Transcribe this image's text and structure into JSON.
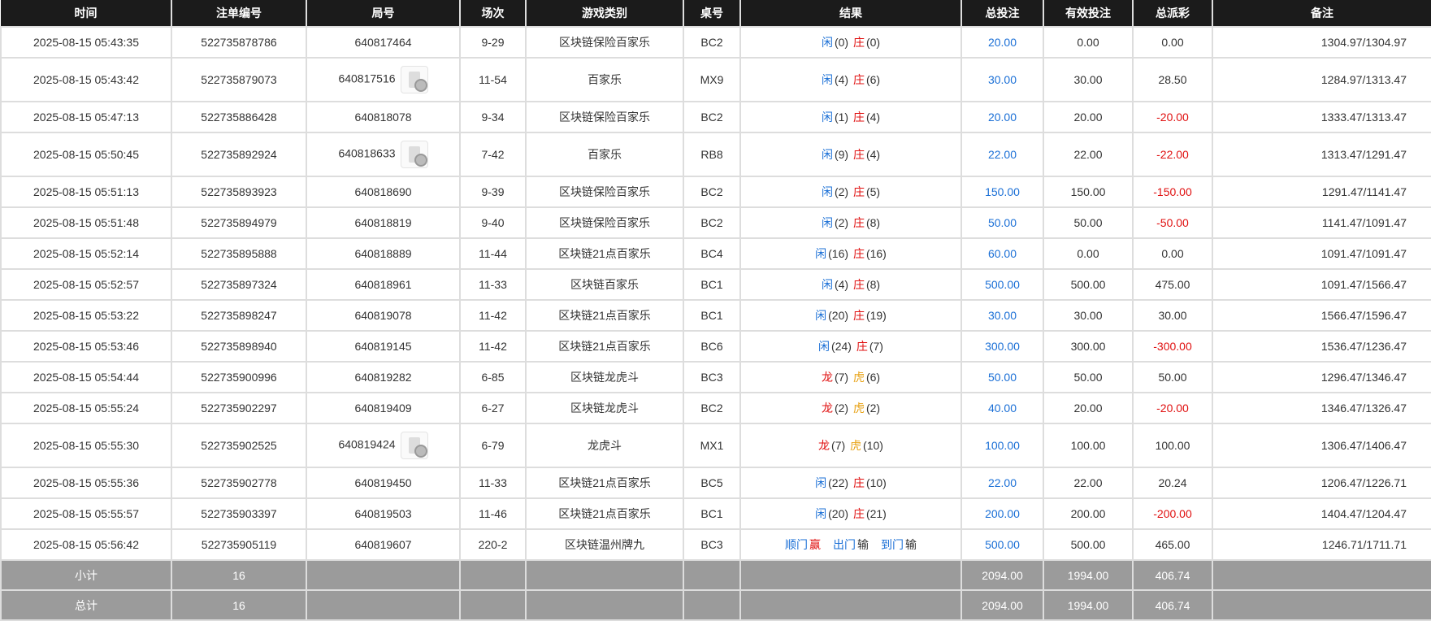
{
  "headers": [
    "时间",
    "注单编号",
    "局号",
    "场次",
    "游戏类别",
    "桌号",
    "结果",
    "总投注",
    "有效投注",
    "总派彩",
    "备注"
  ],
  "rows": [
    {
      "time": "2025-08-15 05:43:35",
      "bet_id": "522735878786",
      "round": "640817464",
      "video": false,
      "session": "9-29",
      "game": "区块链保险百家乐",
      "table": "BC2",
      "result": [
        [
          "闲",
          "blue"
        ],
        [
          "(0) ",
          "dark"
        ],
        [
          "庄",
          "red"
        ],
        [
          "(0)",
          "dark"
        ]
      ],
      "total": "20.00",
      "valid": "0.00",
      "payout": "0.00",
      "payout_neg": false,
      "remark": "1304.97/1304.97"
    },
    {
      "time": "2025-08-15 05:43:42",
      "bet_id": "522735879073",
      "round": "640817516",
      "video": true,
      "session": "11-54",
      "game": "百家乐",
      "table": "MX9",
      "result": [
        [
          "闲",
          "blue"
        ],
        [
          "(4) ",
          "dark"
        ],
        [
          "庄",
          "red"
        ],
        [
          "(6)",
          "dark"
        ]
      ],
      "total": "30.00",
      "valid": "30.00",
      "payout": "28.50",
      "payout_neg": false,
      "remark": "1284.97/1313.47"
    },
    {
      "time": "2025-08-15 05:47:13",
      "bet_id": "522735886428",
      "round": "640818078",
      "video": false,
      "session": "9-34",
      "game": "区块链保险百家乐",
      "table": "BC2",
      "result": [
        [
          "闲",
          "blue"
        ],
        [
          "(1) ",
          "dark"
        ],
        [
          "庄",
          "red"
        ],
        [
          "(4)",
          "dark"
        ]
      ],
      "total": "20.00",
      "valid": "20.00",
      "payout": "-20.00",
      "payout_neg": true,
      "remark": "1333.47/1313.47"
    },
    {
      "time": "2025-08-15 05:50:45",
      "bet_id": "522735892924",
      "round": "640818633",
      "video": true,
      "session": "7-42",
      "game": "百家乐",
      "table": "RB8",
      "result": [
        [
          "闲",
          "blue"
        ],
        [
          "(9) ",
          "dark"
        ],
        [
          "庄",
          "red"
        ],
        [
          "(4)",
          "dark"
        ]
      ],
      "total": "22.00",
      "valid": "22.00",
      "payout": "-22.00",
      "payout_neg": true,
      "remark": "1313.47/1291.47"
    },
    {
      "time": "2025-08-15 05:51:13",
      "bet_id": "522735893923",
      "round": "640818690",
      "video": false,
      "session": "9-39",
      "game": "区块链保险百家乐",
      "table": "BC2",
      "result": [
        [
          "闲",
          "blue"
        ],
        [
          "(2) ",
          "dark"
        ],
        [
          "庄",
          "red"
        ],
        [
          "(5)",
          "dark"
        ]
      ],
      "total": "150.00",
      "valid": "150.00",
      "payout": "-150.00",
      "payout_neg": true,
      "remark": "1291.47/1141.47"
    },
    {
      "time": "2025-08-15 05:51:48",
      "bet_id": "522735894979",
      "round": "640818819",
      "video": false,
      "session": "9-40",
      "game": "区块链保险百家乐",
      "table": "BC2",
      "result": [
        [
          "闲",
          "blue"
        ],
        [
          "(2) ",
          "dark"
        ],
        [
          "庄",
          "red"
        ],
        [
          "(8)",
          "dark"
        ]
      ],
      "total": "50.00",
      "valid": "50.00",
      "payout": "-50.00",
      "payout_neg": true,
      "remark": "1141.47/1091.47"
    },
    {
      "time": "2025-08-15 05:52:14",
      "bet_id": "522735895888",
      "round": "640818889",
      "video": false,
      "session": "11-44",
      "game": "区块链21点百家乐",
      "table": "BC4",
      "result": [
        [
          "闲",
          "blue"
        ],
        [
          "(16) ",
          "dark"
        ],
        [
          "庄",
          "red"
        ],
        [
          "(16)",
          "dark"
        ]
      ],
      "total": "60.00",
      "valid": "0.00",
      "payout": "0.00",
      "payout_neg": false,
      "remark": "1091.47/1091.47"
    },
    {
      "time": "2025-08-15 05:52:57",
      "bet_id": "522735897324",
      "round": "640818961",
      "video": false,
      "session": "11-33",
      "game": "区块链百家乐",
      "table": "BC1",
      "result": [
        [
          "闲",
          "blue"
        ],
        [
          "(4) ",
          "dark"
        ],
        [
          "庄",
          "red"
        ],
        [
          "(8)",
          "dark"
        ]
      ],
      "total": "500.00",
      "valid": "500.00",
      "payout": "475.00",
      "payout_neg": false,
      "remark": "1091.47/1566.47"
    },
    {
      "time": "2025-08-15 05:53:22",
      "bet_id": "522735898247",
      "round": "640819078",
      "video": false,
      "session": "11-42",
      "game": "区块链21点百家乐",
      "table": "BC1",
      "result": [
        [
          "闲",
          "blue"
        ],
        [
          "(20) ",
          "dark"
        ],
        [
          "庄",
          "red"
        ],
        [
          "(19)",
          "dark"
        ]
      ],
      "total": "30.00",
      "valid": "30.00",
      "payout": "30.00",
      "payout_neg": false,
      "remark": "1566.47/1596.47"
    },
    {
      "time": "2025-08-15 05:53:46",
      "bet_id": "522735898940",
      "round": "640819145",
      "video": false,
      "session": "11-42",
      "game": "区块链21点百家乐",
      "table": "BC6",
      "result": [
        [
          "闲",
          "blue"
        ],
        [
          "(24) ",
          "dark"
        ],
        [
          "庄",
          "red"
        ],
        [
          "(7)",
          "dark"
        ]
      ],
      "total": "300.00",
      "valid": "300.00",
      "payout": "-300.00",
      "payout_neg": true,
      "remark": "1536.47/1236.47"
    },
    {
      "time": "2025-08-15 05:54:44",
      "bet_id": "522735900996",
      "round": "640819282",
      "video": false,
      "session": "6-85",
      "game": "区块链龙虎斗",
      "table": "BC3",
      "result": [
        [
          "龙",
          "red"
        ],
        [
          "(7) ",
          "dark"
        ],
        [
          "虎",
          "gold"
        ],
        [
          "(6)",
          "dark"
        ]
      ],
      "total": "50.00",
      "valid": "50.00",
      "payout": "50.00",
      "payout_neg": false,
      "remark": "1296.47/1346.47"
    },
    {
      "time": "2025-08-15 05:55:24",
      "bet_id": "522735902297",
      "round": "640819409",
      "video": false,
      "session": "6-27",
      "game": "区块链龙虎斗",
      "table": "BC2",
      "result": [
        [
          "龙",
          "red"
        ],
        [
          "(2) ",
          "dark"
        ],
        [
          "虎",
          "gold"
        ],
        [
          "(2)",
          "dark"
        ]
      ],
      "total": "40.00",
      "valid": "20.00",
      "payout": "-20.00",
      "payout_neg": true,
      "remark": "1346.47/1326.47"
    },
    {
      "time": "2025-08-15 05:55:30",
      "bet_id": "522735902525",
      "round": "640819424",
      "video": true,
      "session": "6-79",
      "game": "龙虎斗",
      "table": "MX1",
      "result": [
        [
          "龙",
          "red"
        ],
        [
          "(7) ",
          "dark"
        ],
        [
          "虎",
          "gold"
        ],
        [
          "(10)",
          "dark"
        ]
      ],
      "total": "100.00",
      "valid": "100.00",
      "payout": "100.00",
      "payout_neg": false,
      "remark": "1306.47/1406.47"
    },
    {
      "time": "2025-08-15 05:55:36",
      "bet_id": "522735902778",
      "round": "640819450",
      "video": false,
      "session": "11-33",
      "game": "区块链21点百家乐",
      "table": "BC5",
      "result": [
        [
          "闲",
          "blue"
        ],
        [
          "(22) ",
          "dark"
        ],
        [
          "庄",
          "red"
        ],
        [
          "(10)",
          "dark"
        ]
      ],
      "total": "22.00",
      "valid": "22.00",
      "payout": "20.24",
      "payout_neg": false,
      "remark": "1206.47/1226.71"
    },
    {
      "time": "2025-08-15 05:55:57",
      "bet_id": "522735903397",
      "round": "640819503",
      "video": false,
      "session": "11-46",
      "game": "区块链21点百家乐",
      "table": "BC1",
      "result": [
        [
          "闲",
          "blue"
        ],
        [
          "(20) ",
          "dark"
        ],
        [
          "庄",
          "red"
        ],
        [
          "(21)",
          "dark"
        ]
      ],
      "total": "200.00",
      "valid": "200.00",
      "payout": "-200.00",
      "payout_neg": true,
      "remark": "1404.47/1204.47"
    },
    {
      "time": "2025-08-15 05:56:42",
      "bet_id": "522735905119",
      "round": "640819607",
      "video": false,
      "session": "220-2",
      "game": "区块链温州牌九",
      "table": "BC3",
      "result": [
        [
          "顺门",
          "blue"
        ],
        [
          "赢",
          "red"
        ],
        [
          "出门",
          "blue gap"
        ],
        [
          "输",
          "dark"
        ],
        [
          "到门",
          "blue gap"
        ],
        [
          "输",
          "dark"
        ]
      ],
      "total": "500.00",
      "valid": "500.00",
      "payout": "465.00",
      "payout_neg": false,
      "remark": "1246.71/1711.71"
    }
  ],
  "subtotal": {
    "label": "小计",
    "count": "16",
    "total": "2094.00",
    "valid": "1994.00",
    "payout": "406.74"
  },
  "grandtotal": {
    "label": "总计",
    "count": "16",
    "total": "2094.00",
    "valid": "1994.00",
    "payout": "406.74"
  },
  "colors": {
    "blue": "#1a6fd6",
    "red": "#e01010",
    "gold": "#e8a317",
    "header_bg": "#1b1b1b",
    "footer_bg": "#9b9b9b"
  }
}
